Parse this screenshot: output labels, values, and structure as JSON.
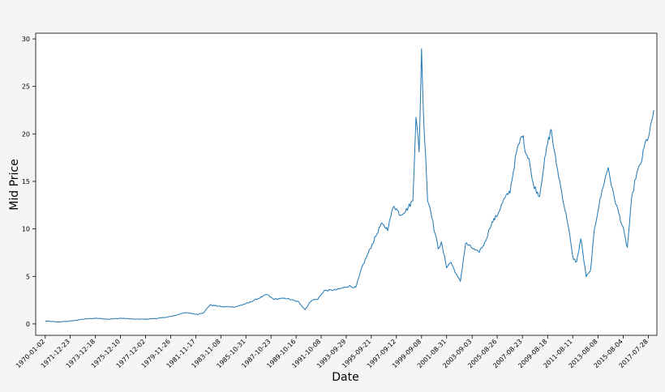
{
  "chart_data": {
    "type": "line",
    "title": "",
    "xlabel": "Date",
    "ylabel": "Mid Price",
    "ylim": [
      -1.2,
      30.6
    ],
    "grid": false,
    "legend": "none",
    "line_color": "#1f77b4",
    "background_color": "#ffffff",
    "y_ticks": [
      0,
      5,
      10,
      15,
      20,
      25,
      30
    ],
    "x_tick_labels": [
      "1970-01-02",
      "1971-12-23",
      "1973-12-18",
      "1975-12-10",
      "1977-12-02",
      "1979-11-26",
      "1981-11-17",
      "1983-11-08",
      "1985-10-31",
      "1987-10-23",
      "1989-10-16",
      "1991-10-08",
      "1993-09-29",
      "1995-09-21",
      "1997-09-12",
      "1999-09-08",
      "2001-08-31",
      "2003-09-03",
      "2005-08-26",
      "2007-08-23",
      "2009-08-18",
      "2011-08-11",
      "2013-08-08",
      "2015-08-04",
      "2017-07-28"
    ],
    "x_range": [
      "1969-04-01",
      "2018-04-01"
    ],
    "series": [
      {
        "name": "",
        "x": [
          "1970-01-02",
          "1971-01-01",
          "1972-01-01",
          "1973-01-01",
          "1974-01-01",
          "1975-01-01",
          "1976-01-01",
          "1977-01-01",
          "1978-01-01",
          "1979-01-01",
          "1980-01-01",
          "1981-01-01",
          "1982-01-01",
          "1982-07-01",
          "1983-01-01",
          "1984-01-01",
          "1985-01-01",
          "1986-01-01",
          "1987-01-01",
          "1987-07-01",
          "1988-01-01",
          "1989-01-01",
          "1990-01-01",
          "1990-07-01",
          "1991-01-01",
          "1991-07-01",
          "1992-01-01",
          "1993-01-01",
          "1994-01-01",
          "1994-07-01",
          "1995-01-01",
          "1995-07-01",
          "1996-01-01",
          "1996-07-01",
          "1997-01-01",
          "1997-07-01",
          "1998-01-01",
          "1998-07-01",
          "1999-01-01",
          "1999-04-01",
          "1999-07-01",
          "1999-09-08",
          "1999-11-01",
          "2000-01-01",
          "2000-03-01",
          "2000-06-01",
          "2000-09-01",
          "2001-01-01",
          "2001-04-01",
          "2001-09-01",
          "2002-01-01",
          "2002-07-01",
          "2002-10-01",
          "2003-03-01",
          "2003-09-03",
          "2004-03-01",
          "2004-09-01",
          "2005-03-01",
          "2005-09-01",
          "2006-03-01",
          "2006-09-01",
          "2007-03-01",
          "2007-08-23",
          "2007-12-01",
          "2008-03-01",
          "2008-06-01",
          "2008-10-01",
          "2009-01-01",
          "2009-04-01",
          "2009-08-18",
          "2009-12-01",
          "2010-03-01",
          "2010-08-01",
          "2011-01-01",
          "2011-04-01",
          "2011-08-11",
          "2011-12-01",
          "2012-04-01",
          "2012-09-01",
          "2013-01-01",
          "2013-05-01",
          "2013-08-08",
          "2014-01-01",
          "2014-06-01",
          "2014-10-01",
          "2015-03-01",
          "2015-08-04",
          "2015-12-01",
          "2016-04-01",
          "2016-08-01",
          "2017-01-01",
          "2017-05-01",
          "2017-09-01",
          "2018-01-01"
        ],
        "y": [
          0.3,
          0.2,
          0.3,
          0.5,
          0.6,
          0.5,
          0.6,
          0.5,
          0.5,
          0.6,
          0.8,
          1.2,
          1.0,
          1.2,
          2.0,
          1.8,
          1.8,
          2.2,
          2.8,
          3.1,
          2.6,
          2.7,
          2.3,
          1.5,
          2.5,
          2.6,
          3.5,
          3.6,
          4.0,
          3.8,
          6.0,
          7.5,
          9.0,
          10.5,
          10.0,
          12.5,
          11.5,
          12.0,
          13.0,
          22.0,
          18.0,
          29.0,
          22.0,
          18.0,
          13.0,
          12.0,
          10.0,
          8.0,
          8.5,
          6.0,
          6.5,
          5.0,
          4.5,
          8.5,
          8.0,
          7.5,
          8.5,
          10.5,
          11.5,
          13.0,
          14.0,
          18.0,
          20.0,
          18.0,
          17.5,
          15.0,
          14.0,
          13.5,
          16.0,
          19.0,
          20.5,
          18.0,
          15.0,
          12.0,
          10.5,
          7.0,
          6.5,
          9.0,
          5.0,
          5.5,
          10.0,
          12.0,
          14.5,
          16.5,
          14.0,
          12.0,
          10.0,
          8.0,
          13.0,
          15.5,
          17.0,
          19.0,
          20.0,
          22.5
        ]
      }
    ]
  }
}
